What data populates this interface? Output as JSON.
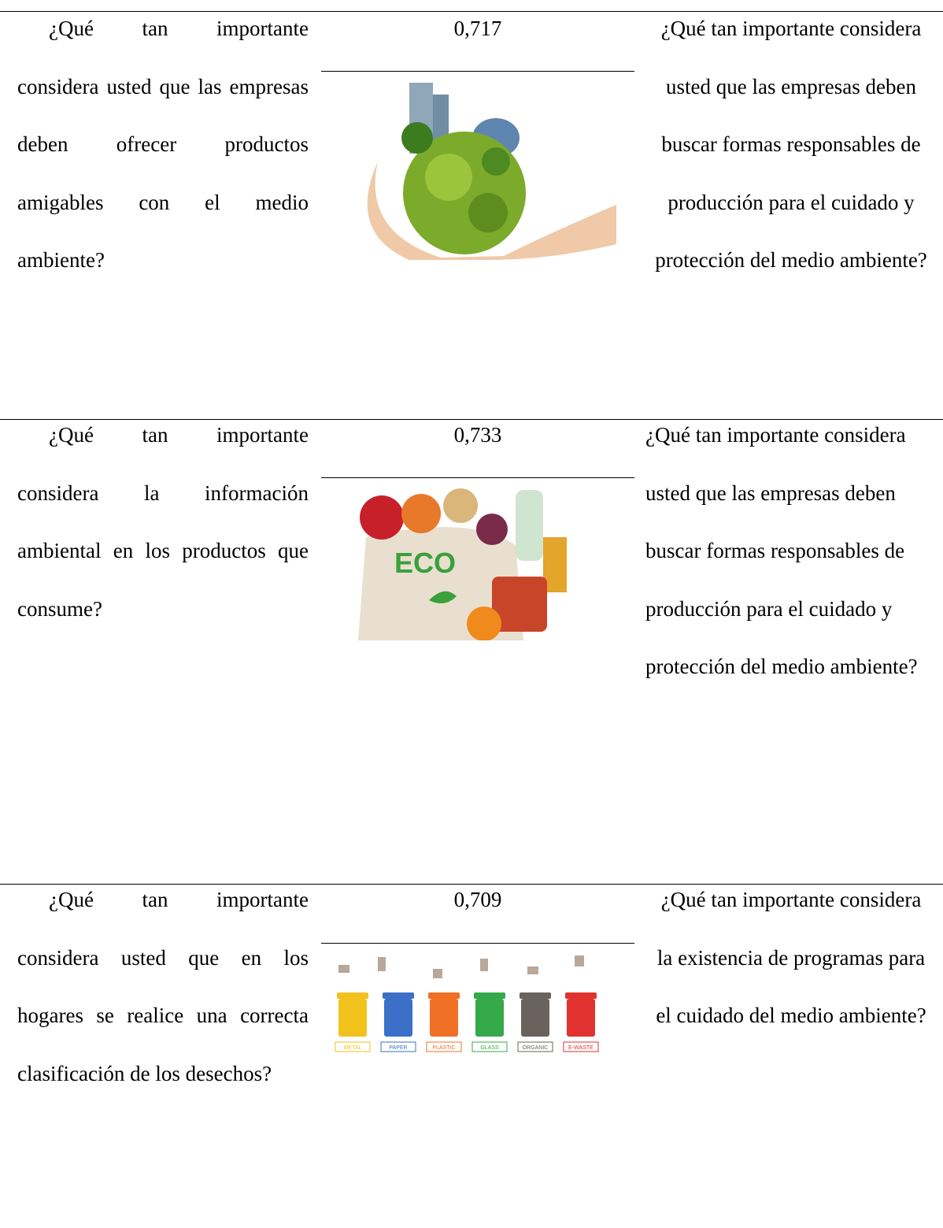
{
  "table": {
    "rows": [
      {
        "question": "¿Qué tan importante considera usted que las empresas deben ofrecer productos amigables con el medio ambiente?",
        "value": "0,717",
        "related": "¿Qué tan importante considera usted que las empresas deben buscar formas responsables de producción para el cuidado y protección del medio ambiente?"
      },
      {
        "question": "¿Qué tan importante considera la información ambiental en los productos que consume?",
        "value": "0,733",
        "related": "¿Qué tan importante considera usted que las empresas deben buscar formas responsables de producción para el cuidado y protección del medio ambiente?",
        "image_text": "ECO"
      },
      {
        "question": "¿Qué tan importante considera usted que en los hogares se realice una correcta clasificación de los desechos?",
        "value": "0,709",
        "related": "¿Qué tan importante considera la existencia de programas para el cuidado del medio ambiente?",
        "bin_labels": [
          "METAL",
          "PAPER",
          "PLASTIC",
          "GLASS",
          "ORGANIC",
          "E-WASTE"
        ]
      }
    ]
  }
}
